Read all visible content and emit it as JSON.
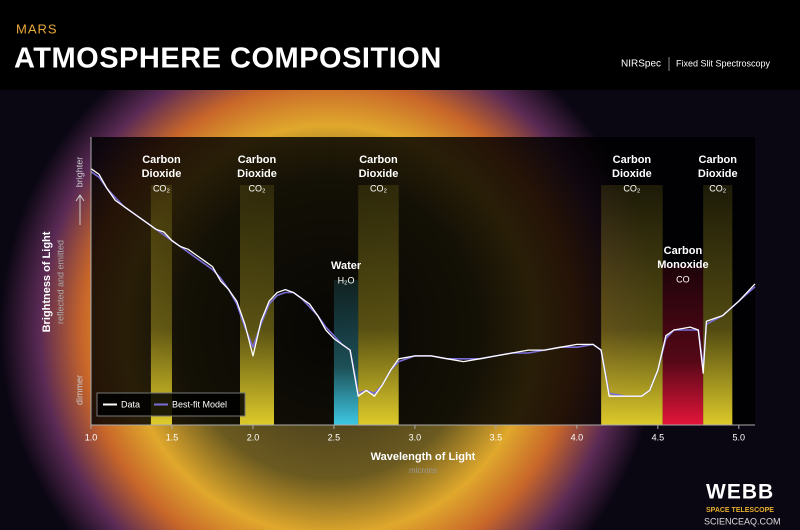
{
  "header": {
    "subtitle": "MARS",
    "title": "ATMOSPHERE COMPOSITION",
    "instrument": "NIRSpec",
    "mode": "Fixed Slit Spectroscopy"
  },
  "chart_data": {
    "type": "line",
    "x": [
      1.0,
      1.05,
      1.1,
      1.15,
      1.2,
      1.25,
      1.3,
      1.35,
      1.4,
      1.45,
      1.5,
      1.55,
      1.6,
      1.65,
      1.7,
      1.75,
      1.8,
      1.85,
      1.9,
      1.95,
      2.0,
      2.05,
      2.1,
      2.15,
      2.2,
      2.25,
      2.3,
      2.35,
      2.4,
      2.45,
      2.5,
      2.55,
      2.6,
      2.65,
      2.7,
      2.75,
      2.8,
      2.85,
      2.9,
      3.0,
      3.1,
      3.2,
      3.3,
      3.4,
      3.5,
      3.6,
      3.7,
      3.8,
      3.9,
      4.0,
      4.1,
      4.15,
      4.2,
      4.3,
      4.4,
      4.45,
      4.5,
      4.55,
      4.6,
      4.7,
      4.75,
      4.78,
      4.8,
      4.9,
      5.0,
      5.1
    ],
    "series": [
      {
        "name": "Data",
        "color": "#ffffff",
        "values": [
          89,
          87,
          82,
          78,
          76,
          74,
          72,
          70,
          68,
          67,
          64,
          62,
          61,
          59,
          57,
          55,
          50,
          47,
          43,
          35,
          24,
          36,
          43,
          46,
          47,
          46,
          44,
          42,
          38,
          33,
          30,
          28,
          26,
          10,
          12,
          10,
          14,
          19,
          23,
          24,
          24,
          23,
          22,
          23,
          24,
          25,
          26,
          26,
          27,
          28,
          28,
          26,
          10,
          10,
          10,
          12,
          19,
          31,
          33,
          34,
          33,
          18,
          36,
          38,
          43,
          49
        ]
      },
      {
        "name": "Best-fit Model",
        "color": "#7a6cd8",
        "values": [
          88,
          86,
          82,
          79,
          76,
          74,
          72,
          70,
          68,
          66,
          64,
          62,
          60,
          58,
          56,
          54,
          51,
          47,
          42,
          34,
          27,
          35,
          42,
          45,
          46,
          46,
          44,
          41,
          38,
          34,
          31,
          28,
          26,
          11,
          12,
          11,
          14,
          19,
          22,
          24,
          24,
          23,
          23,
          23,
          24,
          25,
          25,
          26,
          27,
          27,
          28,
          26,
          11,
          10,
          10,
          12,
          19,
          30,
          33,
          33,
          33,
          20,
          35,
          38,
          43,
          48
        ]
      }
    ],
    "xlim": [
      1.0,
      5.1
    ],
    "ylim": [
      0,
      100
    ],
    "xticks": [
      {
        "value": 1.0,
        "label": "1.0"
      },
      1.5,
      {
        "value": 2.0,
        "label": "2.0"
      },
      2.5,
      {
        "value": 3.0,
        "label": "3.0"
      },
      3.5,
      {
        "value": 4.0,
        "label": "4.0"
      },
      4.5,
      {
        "value": 5.0,
        "label": "5.0"
      }
    ],
    "x_label": "Wavelength of Light",
    "x_unit": "microns",
    "y_label": "Brightness of Light",
    "y_sublabel": "reflected and emitted",
    "y_top_label": "brighter",
    "y_bottom_label": "dimmer",
    "legend": "lower left",
    "bands": [
      {
        "label": [
          "Carbon",
          "Dioxide"
        ],
        "formula": "CO₂",
        "xrange": [
          1.37,
          1.5
        ],
        "color": "#e8d42c"
      },
      {
        "label": [
          "Carbon",
          "Dioxide"
        ],
        "formula": "CO₂",
        "xrange": [
          1.92,
          2.13
        ],
        "color": "#e8d42c"
      },
      {
        "label": [
          "Water"
        ],
        "formula": "H₂O",
        "xrange": [
          2.5,
          2.65
        ],
        "color": "#3fd2f0"
      },
      {
        "label": [
          "Carbon",
          "Dioxide"
        ],
        "formula": "CO₂",
        "xrange": [
          2.65,
          2.9
        ],
        "color": "#e8d42c"
      },
      {
        "label": [
          "Carbon",
          "Dioxide"
        ],
        "formula": "CO₂",
        "xrange": [
          4.15,
          4.53
        ],
        "color": "#e8d42c"
      },
      {
        "label": [
          "Carbon",
          "Monoxide"
        ],
        "formula": "CO",
        "xrange": [
          4.53,
          4.78
        ],
        "color": "#f0163c"
      },
      {
        "label": [
          "Carbon",
          "Dioxide"
        ],
        "formula": "CO₂",
        "xrange": [
          4.78,
          4.96
        ],
        "color": "#e8d42c"
      }
    ]
  },
  "footer": {
    "logo": "WEBB",
    "logo_sub": "SPACE TELESCOPE",
    "credit": "SCIENCEAQ.COM"
  }
}
